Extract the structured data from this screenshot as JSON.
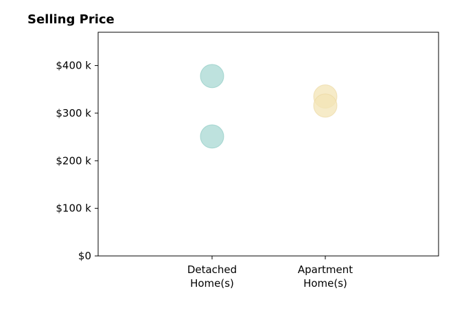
{
  "chart_data": {
    "type": "scatter",
    "title": "Selling Price",
    "xlabel": "",
    "ylabel": "",
    "categories": [
      [
        "Detached",
        "Home(s)"
      ],
      [
        "Apartment",
        "Home(s)"
      ]
    ],
    "ylim": [
      0,
      470000
    ],
    "yticks": [
      {
        "value": 0,
        "label": "$0"
      },
      {
        "value": 100000,
        "label": "$100 k"
      },
      {
        "value": 200000,
        "label": "$200 k"
      },
      {
        "value": 300000,
        "label": "$300 k"
      },
      {
        "value": 400000,
        "label": "$400 k"
      }
    ],
    "points": [
      {
        "category": 0,
        "value": 378000,
        "color": "#a8d8d3"
      },
      {
        "category": 0,
        "value": 251000,
        "color": "#a8d8d3"
      },
      {
        "category": 1,
        "value": 335000,
        "color": "#f3e4b6"
      },
      {
        "category": 1,
        "value": 316000,
        "color": "#f3e4b6"
      }
    ],
    "grid": false,
    "legend": "none"
  }
}
